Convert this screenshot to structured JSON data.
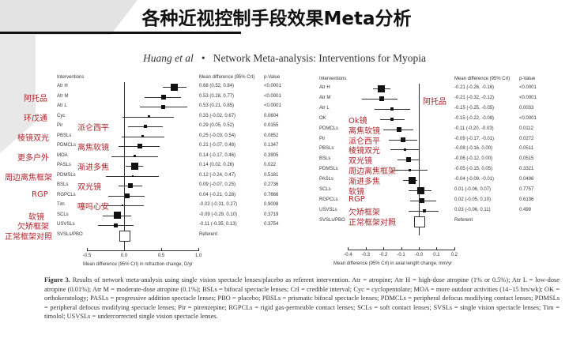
{
  "slide": {
    "title": "各种近视控制手段效果Meta分析"
  },
  "header": {
    "authors": "Huang et al",
    "bullet": "•",
    "text": "Network Meta-analysis: Interventions for Myopia"
  },
  "caption": {
    "label": "Figure 3.",
    "text": "Results of network meta-analysis using single vision spectacle lenses/placebo as referent intervention. Atr = atropine; Atr H = high-dose atropine (1% or 0.5%); Atr L = low-dose atropine (0.01%); Atr M = moderate-dose atropine (0.1%); BSLs = bifocal spectacle lenses; CrI = credible interval; Cyc = cyclopentolate; MOA = more outdoor activities (14−15 hrs/wk); OK = orthokeratology; PASLs = progressive addition spectacle lenses; PBO = placebo; PBSLs = prismatic bifocal spectacle lenses; PDMCLs = peripheral defocus modifying contact lenses; PDMSLs = peripheral defocus modifying spectacle lenses; Pir = pirenzepine; RGPCLs = rigid gas-permeable contact lenses; SCLs = soft contact lenses; SVSLs = single vision spectacle lenses; Tim = timolol; USVSLs = undercorrected single vision spectacle lenses."
  },
  "chart_data": [
    {
      "type": "forest",
      "title": "Refraction change",
      "xlabel": "Mean difference (95% CrI) in refraction change, D/yr",
      "xlim": [
        -0.5,
        1.0
      ],
      "xticks": [
        "-0.5",
        "0.0",
        "0.5",
        "1.0"
      ],
      "col_headers": {
        "interventions": "Interventions",
        "md": "Mean difference (95% CrI)",
        "p": "p-Value"
      },
      "rows": [
        {
          "name": "Atr H",
          "cn": "",
          "md": 0.68,
          "lo": 0.52,
          "hi": 0.84,
          "md_text": "0.68 (0.52, 0.84)",
          "p": "<0.0001",
          "size": 9
        },
        {
          "name": "Atr M",
          "cn": "阿托品",
          "md": 0.53,
          "lo": 0.28,
          "hi": 0.77,
          "md_text": "0.53 (0.28, 0.77)",
          "p": "<0.0001",
          "size": 6
        },
        {
          "name": "Atr L",
          "cn": "",
          "md": 0.53,
          "lo": 0.21,
          "hi": 0.85,
          "md_text": "0.53 (0.21, 0.85)",
          "p": "<0.0001",
          "size": 5
        },
        {
          "name": "Cyc",
          "cn": "环戊通",
          "md": 0.33,
          "lo": -0.02,
          "hi": 0.67,
          "md_text": "0.33 (-0.02, 0.67)",
          "p": "0.0604",
          "size": 3
        },
        {
          "name": "Pir",
          "cn": "",
          "cn2": "派仑西平",
          "md": 0.29,
          "lo": 0.05,
          "hi": 0.52,
          "md_text": "0.29 (0.05, 0.52)",
          "p": "0.0155",
          "size": 4
        },
        {
          "name": "PBSLs",
          "cn": "棱镜双光",
          "md": 0.25,
          "lo": -0.03,
          "hi": 0.54,
          "md_text": "0.25 (-0.03, 0.54)",
          "p": "0.0852",
          "size": 3
        },
        {
          "name": "PDMCLs",
          "cn": "",
          "cn2": "离焦软镜",
          "md": 0.21,
          "lo": -0.07,
          "hi": 0.48,
          "md_text": "0.21 (-0.07, 0.48)",
          "p": "0.1347",
          "size": 6
        },
        {
          "name": "MOA",
          "cn": "更多户外",
          "md": 0.14,
          "lo": -0.17,
          "hi": 0.46,
          "md_text": "0.14 (-0.17, 0.46)",
          "p": "0.3905",
          "size": 3
        },
        {
          "name": "PASLs",
          "cn": "",
          "cn2": "渐进多焦",
          "md": 0.14,
          "lo": 0.02,
          "hi": 0.26,
          "md_text": "0.14 (0.02, 0.26)",
          "p": "0.022",
          "size": 9
        },
        {
          "name": "PDMSLs",
          "cn": "周边离焦框架",
          "md": 0.12,
          "lo": -0.24,
          "hi": 0.47,
          "md_text": "0.12 (-0.24, 0.47)",
          "p": "0.5181",
          "size": 2
        },
        {
          "name": "BSLs",
          "cn": "",
          "cn2": "双光镜",
          "md": 0.09,
          "lo": -0.07,
          "hi": 0.25,
          "md_text": "0.09 (-0.07, 0.25)",
          "p": "0.2736",
          "size": 6
        },
        {
          "name": "RGPCLs",
          "cn": "RGP",
          "md": 0.04,
          "lo": -0.21,
          "hi": 0.28,
          "md_text": "0.04 (-0.21, 0.28)",
          "p": "0.7666",
          "size": 6
        },
        {
          "name": "Tim",
          "cn": "",
          "cn2": "噻吗心安",
          "md": -0.02,
          "lo": -0.31,
          "hi": 0.27,
          "md_text": "-0.02 (-0.31, 0.27)",
          "p": "0.9008",
          "size": 2
        },
        {
          "name": "SCLs",
          "cn": "软镜",
          "md": -0.09,
          "lo": -0.29,
          "hi": 0.1,
          "md_text": "-0.09 (-0.29, 0.10)",
          "p": "0.3719",
          "size": 9
        },
        {
          "name": "USVSLs",
          "cn": "欠矫框架",
          "md": -0.11,
          "lo": -0.35,
          "hi": 0.13,
          "md_text": "-0.11 (-0.35, 0.13)",
          "p": "0.3754",
          "size": 5
        },
        {
          "name": "SVSLs/PBO",
          "cn": "正常框架对照",
          "md": 0,
          "lo": 0,
          "hi": 0,
          "md_text": "Referent",
          "p": "",
          "size": 12,
          "referent": true
        }
      ]
    },
    {
      "type": "forest",
      "title": "Axial length change",
      "xlabel": "Mean difference (95% CrI) in axial length change, mm/yr",
      "xlim": [
        -0.4,
        0.2
      ],
      "xticks": [
        "-0.4",
        "-0.3",
        "-0.2",
        "-0.1",
        "-0.0",
        "0.1",
        "0.2"
      ],
      "col_headers": {
        "interventions": "Interventions",
        "md": "Mean difference (95% CrI)",
        "p": "p-Value"
      },
      "rows": [
        {
          "name": "Atr H",
          "cn": "",
          "md": -0.21,
          "lo": -0.26,
          "hi": -0.16,
          "md_text": "-0.21 (-0.26, -0.16)",
          "p": "<0.0001",
          "size": 9
        },
        {
          "name": "Atr M",
          "cn": "",
          "md": -0.21,
          "lo": -0.32,
          "hi": -0.12,
          "md_text": "-0.21 (-0.32, -0.12)",
          "p": "<0.0001",
          "size": 6
        },
        {
          "name": "Atr L",
          "cn": "",
          "md": -0.15,
          "lo": -0.25,
          "hi": -0.05,
          "md_text": "-0.15 (-0.25, -0.05)",
          "p": "0.0033",
          "size": 4
        },
        {
          "name": "OK",
          "cn": "Ok镜",
          "md": -0.15,
          "lo": -0.22,
          "hi": -0.08,
          "md_text": "-0.15 (-0.22, -0.08)",
          "p": "<0.0001",
          "size": 4
        },
        {
          "name": "PDMCLs",
          "cn": "离焦软镜",
          "md": -0.11,
          "lo": -0.2,
          "hi": -0.03,
          "md_text": "-0.11 (-0.20, -0.03)",
          "p": "0.0112",
          "size": 6
        },
        {
          "name": "Pir",
          "cn": "派仑西平",
          "md": -0.09,
          "lo": -0.17,
          "hi": -0.01,
          "md_text": "-0.09 (-0.17, -0.01)",
          "p": "0.0272",
          "size": 6
        },
        {
          "name": "PBSLs",
          "cn": "棱镜双光",
          "md": -0.08,
          "lo": -0.16,
          "hi": 0.0,
          "md_text": "-0.08 (-0.16, 0.00)",
          "p": "0.0511",
          "size": 3
        },
        {
          "name": "BSLs",
          "cn": "双光镜",
          "md": -0.06,
          "lo": -0.12,
          "hi": 0.0,
          "md_text": "-0.06 (-0.12, 0.00)",
          "p": "0.0515",
          "size": 6
        },
        {
          "name": "PDMSLs",
          "cn": "周边离焦框架",
          "md": -0.05,
          "lo": -0.15,
          "hi": 0.05,
          "md_text": "-0.05 (-0.15, 0.05)",
          "p": "0.3321",
          "size": 3
        },
        {
          "name": "PASLs",
          "cn": "渐进多焦",
          "md": -0.04,
          "lo": -0.09,
          "hi": -0.01,
          "md_text": "-0.04 (-0.09, -0.01)",
          "p": "0.0496",
          "size": 9
        },
        {
          "name": "SCLs",
          "cn": "软镜",
          "md": 0.01,
          "lo": -0.06,
          "hi": 0.07,
          "md_text": "0.01 (-0.06, 0.07)",
          "p": "0.7757",
          "size": 9
        },
        {
          "name": "RGPCLs",
          "cn": "RGP",
          "md": 0.02,
          "lo": -0.05,
          "hi": 0.1,
          "md_text": "0.02 (-0.05, 0.10)",
          "p": "0.6136",
          "size": 6
        },
        {
          "name": "USVSLs",
          "cn": "欠矫框架",
          "md": 0.03,
          "lo": -0.06,
          "hi": 0.11,
          "md_text": "0.03 (-0.06, 0.11)",
          "p": "0.499",
          "size": 4
        },
        {
          "name": "SVSLs/PBO",
          "cn": "正常框架对照",
          "md": 0,
          "lo": 0,
          "hi": 0,
          "md_text": "Referent",
          "p": "",
          "size": 12,
          "referent": true
        }
      ],
      "annotation": "阿托品"
    }
  ]
}
